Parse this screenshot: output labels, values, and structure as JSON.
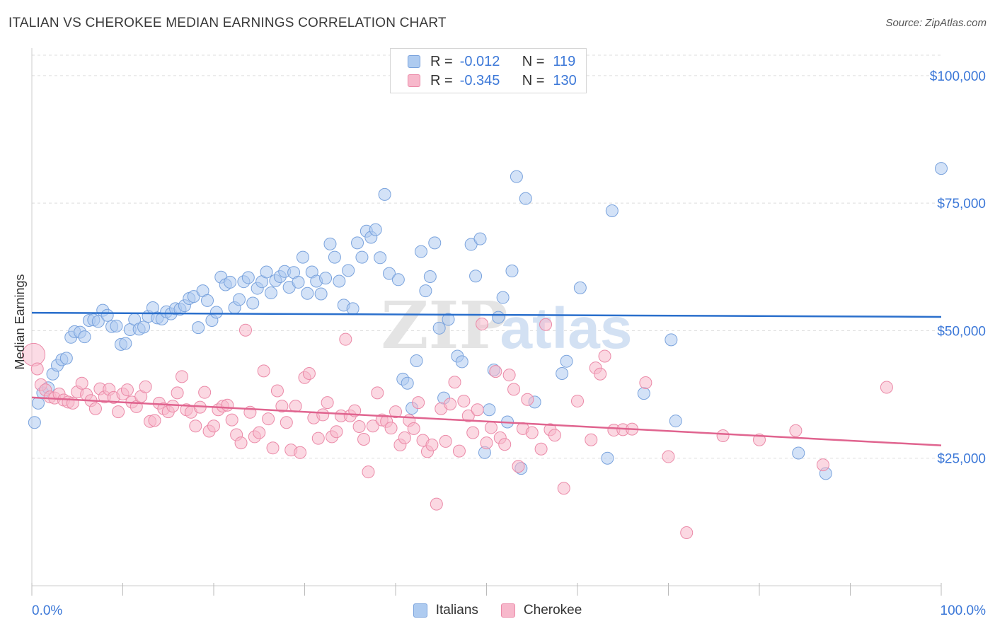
{
  "header": {
    "title": "ITALIAN VS CHEROKEE MEDIAN EARNINGS CORRELATION CHART",
    "source": "Source: ZipAtlas.com"
  },
  "watermark": {
    "zip": "ZIP",
    "atlas": "atlas"
  },
  "colors": {
    "italians_fill": "#aecbf0",
    "italians_stroke": "#7aa3dd",
    "italians_line": "#2a6fcc",
    "cherokee_fill": "#f7b8cb",
    "cherokee_stroke": "#eb8aa8",
    "cherokee_line": "#e0648f",
    "axis_label": "#3c78d8"
  },
  "legend": {
    "italians": {
      "r_label": "R =",
      "r_value": "-0.012",
      "n_label": "N =",
      "n_value": "119"
    },
    "cherokee": {
      "r_label": "R =",
      "r_value": "-0.345",
      "n_label": "N =",
      "n_value": "130"
    }
  },
  "bottom_legend": {
    "italians": "Italians",
    "cherokee": "Cherokee"
  },
  "chart_data": {
    "type": "scatter",
    "title": "ITALIAN VS CHEROKEE MEDIAN EARNINGS CORRELATION CHART",
    "xlabel": "",
    "ylabel": "Median Earnings",
    "xlim": [
      0,
      100
    ],
    "ylim": [
      0,
      104000
    ],
    "x_tick_labels": {
      "min": "0.0%",
      "max": "100.0%"
    },
    "y_ticks": [
      {
        "value": 25000,
        "label": "$25,000"
      },
      {
        "value": 50000,
        "label": "$50,000"
      },
      {
        "value": 75000,
        "label": "$75,000"
      },
      {
        "value": 100000,
        "label": "$100,000"
      }
    ],
    "grid": true,
    "legend_position": "top-center",
    "series": [
      {
        "name": "Italians",
        "r": -0.012,
        "n": 119,
        "trend": {
          "x": [
            0,
            100
          ],
          "y": [
            53500,
            52700
          ]
        },
        "points": [
          [
            0.3,
            32000
          ],
          [
            0.7,
            35800
          ],
          [
            1.2,
            37800
          ],
          [
            1.8,
            38800
          ],
          [
            2.3,
            41500
          ],
          [
            2.8,
            43200
          ],
          [
            3.3,
            44300
          ],
          [
            3.8,
            44600
          ],
          [
            4.3,
            48700
          ],
          [
            4.7,
            49800
          ],
          [
            5.3,
            49700
          ],
          [
            5.8,
            48800
          ],
          [
            6.3,
            52000
          ],
          [
            6.8,
            52100
          ],
          [
            7.3,
            51800
          ],
          [
            7.8,
            54000
          ],
          [
            8.3,
            53000
          ],
          [
            8.8,
            50800
          ],
          [
            9.3,
            50900
          ],
          [
            9.8,
            47300
          ],
          [
            10.3,
            47500
          ],
          [
            10.8,
            50200
          ],
          [
            11.3,
            52200
          ],
          [
            11.8,
            50300
          ],
          [
            12.3,
            50700
          ],
          [
            12.8,
            52800
          ],
          [
            13.3,
            54500
          ],
          [
            13.8,
            52500
          ],
          [
            14.3,
            52300
          ],
          [
            14.8,
            53700
          ],
          [
            15.3,
            53300
          ],
          [
            15.8,
            54300
          ],
          [
            16.3,
            54200
          ],
          [
            16.8,
            54900
          ],
          [
            17.3,
            56300
          ],
          [
            17.8,
            56700
          ],
          [
            18.3,
            50600
          ],
          [
            18.8,
            57800
          ],
          [
            19.3,
            55900
          ],
          [
            19.8,
            52000
          ],
          [
            20.3,
            53600
          ],
          [
            20.8,
            60500
          ],
          [
            21.3,
            59000
          ],
          [
            21.8,
            59500
          ],
          [
            22.3,
            54500
          ],
          [
            22.8,
            56100
          ],
          [
            23.3,
            59600
          ],
          [
            23.8,
            60400
          ],
          [
            24.3,
            55400
          ],
          [
            24.8,
            58300
          ],
          [
            25.3,
            59600
          ],
          [
            25.8,
            61500
          ],
          [
            26.3,
            57400
          ],
          [
            26.8,
            59800
          ],
          [
            27.3,
            60600
          ],
          [
            27.8,
            61600
          ],
          [
            28.3,
            58500
          ],
          [
            28.8,
            61400
          ],
          [
            29.3,
            59500
          ],
          [
            29.8,
            64400
          ],
          [
            30.3,
            57300
          ],
          [
            30.8,
            61500
          ],
          [
            31.3,
            59700
          ],
          [
            31.8,
            57200
          ],
          [
            32.3,
            60300
          ],
          [
            32.8,
            67000
          ],
          [
            33.3,
            64400
          ],
          [
            33.8,
            59700
          ],
          [
            34.3,
            55000
          ],
          [
            34.8,
            61800
          ],
          [
            35.3,
            54300
          ],
          [
            35.8,
            67200
          ],
          [
            36.3,
            64400
          ],
          [
            36.8,
            69500
          ],
          [
            37.3,
            68300
          ],
          [
            37.8,
            69800
          ],
          [
            38.3,
            64300
          ],
          [
            38.8,
            76700
          ],
          [
            39.3,
            61200
          ],
          [
            40.3,
            60000
          ],
          [
            40.8,
            40500
          ],
          [
            41.3,
            39700
          ],
          [
            41.8,
            34800
          ],
          [
            42.3,
            44100
          ],
          [
            42.8,
            65500
          ],
          [
            43.3,
            57800
          ],
          [
            43.8,
            60600
          ],
          [
            44.3,
            67200
          ],
          [
            44.8,
            50500
          ],
          [
            45.3,
            36800
          ],
          [
            45.8,
            52200
          ],
          [
            46.8,
            45000
          ],
          [
            47.3,
            43900
          ],
          [
            48.3,
            66900
          ],
          [
            48.8,
            60700
          ],
          [
            49.3,
            68000
          ],
          [
            49.8,
            26100
          ],
          [
            50.3,
            34500
          ],
          [
            50.8,
            42300
          ],
          [
            51.3,
            52600
          ],
          [
            51.8,
            56500
          ],
          [
            52.3,
            32100
          ],
          [
            52.8,
            61700
          ],
          [
            53.3,
            80200
          ],
          [
            53.8,
            23000
          ],
          [
            54.3,
            75900
          ],
          [
            55.3,
            36000
          ],
          [
            58.3,
            41600
          ],
          [
            58.8,
            44000
          ],
          [
            60.3,
            58400
          ],
          [
            63.3,
            25000
          ],
          [
            63.8,
            73500
          ],
          [
            67.3,
            37700
          ],
          [
            70.3,
            48200
          ],
          [
            70.8,
            32300
          ],
          [
            84.3,
            26000
          ],
          [
            87.3,
            22000
          ],
          [
            100.0,
            81800
          ]
        ]
      },
      {
        "name": "Cherokee",
        "r": -0.345,
        "n": 130,
        "trend": {
          "x": [
            0,
            100
          ],
          "y": [
            36900,
            27500
          ]
        },
        "points": [
          [
            0.2,
            45300
          ],
          [
            0.6,
            42500
          ],
          [
            1.0,
            39400
          ],
          [
            1.5,
            38400
          ],
          [
            2.0,
            37000
          ],
          [
            2.5,
            36800
          ],
          [
            3.0,
            37600
          ],
          [
            3.5,
            36400
          ],
          [
            4.0,
            36000
          ],
          [
            4.5,
            35800
          ],
          [
            5.0,
            38000
          ],
          [
            5.5,
            39700
          ],
          [
            6.0,
            37500
          ],
          [
            6.5,
            36300
          ],
          [
            7.0,
            34700
          ],
          [
            7.5,
            38600
          ],
          [
            8.0,
            37000
          ],
          [
            8.5,
            38500
          ],
          [
            9.0,
            36900
          ],
          [
            9.5,
            34100
          ],
          [
            10.0,
            37600
          ],
          [
            10.5,
            38400
          ],
          [
            11.0,
            36000
          ],
          [
            11.5,
            35100
          ],
          [
            12.0,
            37100
          ],
          [
            12.5,
            39000
          ],
          [
            13.0,
            32200
          ],
          [
            13.5,
            32400
          ],
          [
            14.0,
            35800
          ],
          [
            14.5,
            34700
          ],
          [
            15.0,
            34100
          ],
          [
            15.5,
            35200
          ],
          [
            16.0,
            37800
          ],
          [
            16.5,
            41000
          ],
          [
            17.0,
            34500
          ],
          [
            17.5,
            34000
          ],
          [
            18.0,
            31300
          ],
          [
            18.5,
            35000
          ],
          [
            19.0,
            37900
          ],
          [
            19.5,
            30300
          ],
          [
            20.0,
            31300
          ],
          [
            20.5,
            34500
          ],
          [
            21.0,
            35200
          ],
          [
            21.5,
            35400
          ],
          [
            22.0,
            32500
          ],
          [
            22.5,
            29600
          ],
          [
            23.0,
            28000
          ],
          [
            23.5,
            50100
          ],
          [
            24.0,
            34000
          ],
          [
            24.5,
            29200
          ],
          [
            25.0,
            30000
          ],
          [
            25.5,
            42100
          ],
          [
            26.0,
            32700
          ],
          [
            26.5,
            27000
          ],
          [
            27.0,
            38200
          ],
          [
            27.5,
            35200
          ],
          [
            28.0,
            32000
          ],
          [
            28.5,
            26600
          ],
          [
            29.0,
            35200
          ],
          [
            29.5,
            26100
          ],
          [
            30.0,
            40800
          ],
          [
            30.5,
            41600
          ],
          [
            31.0,
            32900
          ],
          [
            31.5,
            28900
          ],
          [
            32.0,
            33500
          ],
          [
            32.5,
            35900
          ],
          [
            33.0,
            29200
          ],
          [
            33.5,
            30200
          ],
          [
            34.0,
            33300
          ],
          [
            34.5,
            48300
          ],
          [
            35.0,
            33300
          ],
          [
            35.5,
            34300
          ],
          [
            36.0,
            31200
          ],
          [
            36.5,
            28700
          ],
          [
            37.0,
            22300
          ],
          [
            37.5,
            31300
          ],
          [
            38.0,
            37800
          ],
          [
            38.5,
            32500
          ],
          [
            39.0,
            32200
          ],
          [
            39.5,
            30900
          ],
          [
            40.0,
            34100
          ],
          [
            40.5,
            27600
          ],
          [
            41.0,
            29000
          ],
          [
            41.5,
            32400
          ],
          [
            42.0,
            30800
          ],
          [
            42.5,
            35900
          ],
          [
            43.0,
            28500
          ],
          [
            43.5,
            26300
          ],
          [
            44.0,
            27600
          ],
          [
            44.5,
            16000
          ],
          [
            45.0,
            34700
          ],
          [
            45.5,
            28300
          ],
          [
            46.0,
            35600
          ],
          [
            46.5,
            39900
          ],
          [
            47.0,
            26400
          ],
          [
            47.5,
            36200
          ],
          [
            48.0,
            33300
          ],
          [
            48.5,
            30000
          ],
          [
            49.0,
            34500
          ],
          [
            49.5,
            51300
          ],
          [
            50.0,
            28000
          ],
          [
            50.5,
            31000
          ],
          [
            51.0,
            42000
          ],
          [
            51.5,
            29000
          ],
          [
            52.0,
            27700
          ],
          [
            52.5,
            41300
          ],
          [
            53.0,
            38500
          ],
          [
            53.5,
            23400
          ],
          [
            54.0,
            30800
          ],
          [
            54.5,
            36500
          ],
          [
            55.0,
            30000
          ],
          [
            56.0,
            26800
          ],
          [
            56.5,
            51200
          ],
          [
            57.0,
            30600
          ],
          [
            57.5,
            29500
          ],
          [
            58.5,
            19100
          ],
          [
            60.0,
            36200
          ],
          [
            61.5,
            28600
          ],
          [
            62.0,
            42700
          ],
          [
            62.5,
            41500
          ],
          [
            63.0,
            45000
          ],
          [
            64.0,
            30500
          ],
          [
            65.0,
            30600
          ],
          [
            66.0,
            30700
          ],
          [
            67.5,
            39800
          ],
          [
            70.0,
            25300
          ],
          [
            72.0,
            10400
          ],
          [
            76.0,
            29400
          ],
          [
            80.0,
            28600
          ],
          [
            84.0,
            30400
          ],
          [
            87.0,
            23700
          ],
          [
            94.0,
            38900
          ]
        ]
      }
    ]
  }
}
